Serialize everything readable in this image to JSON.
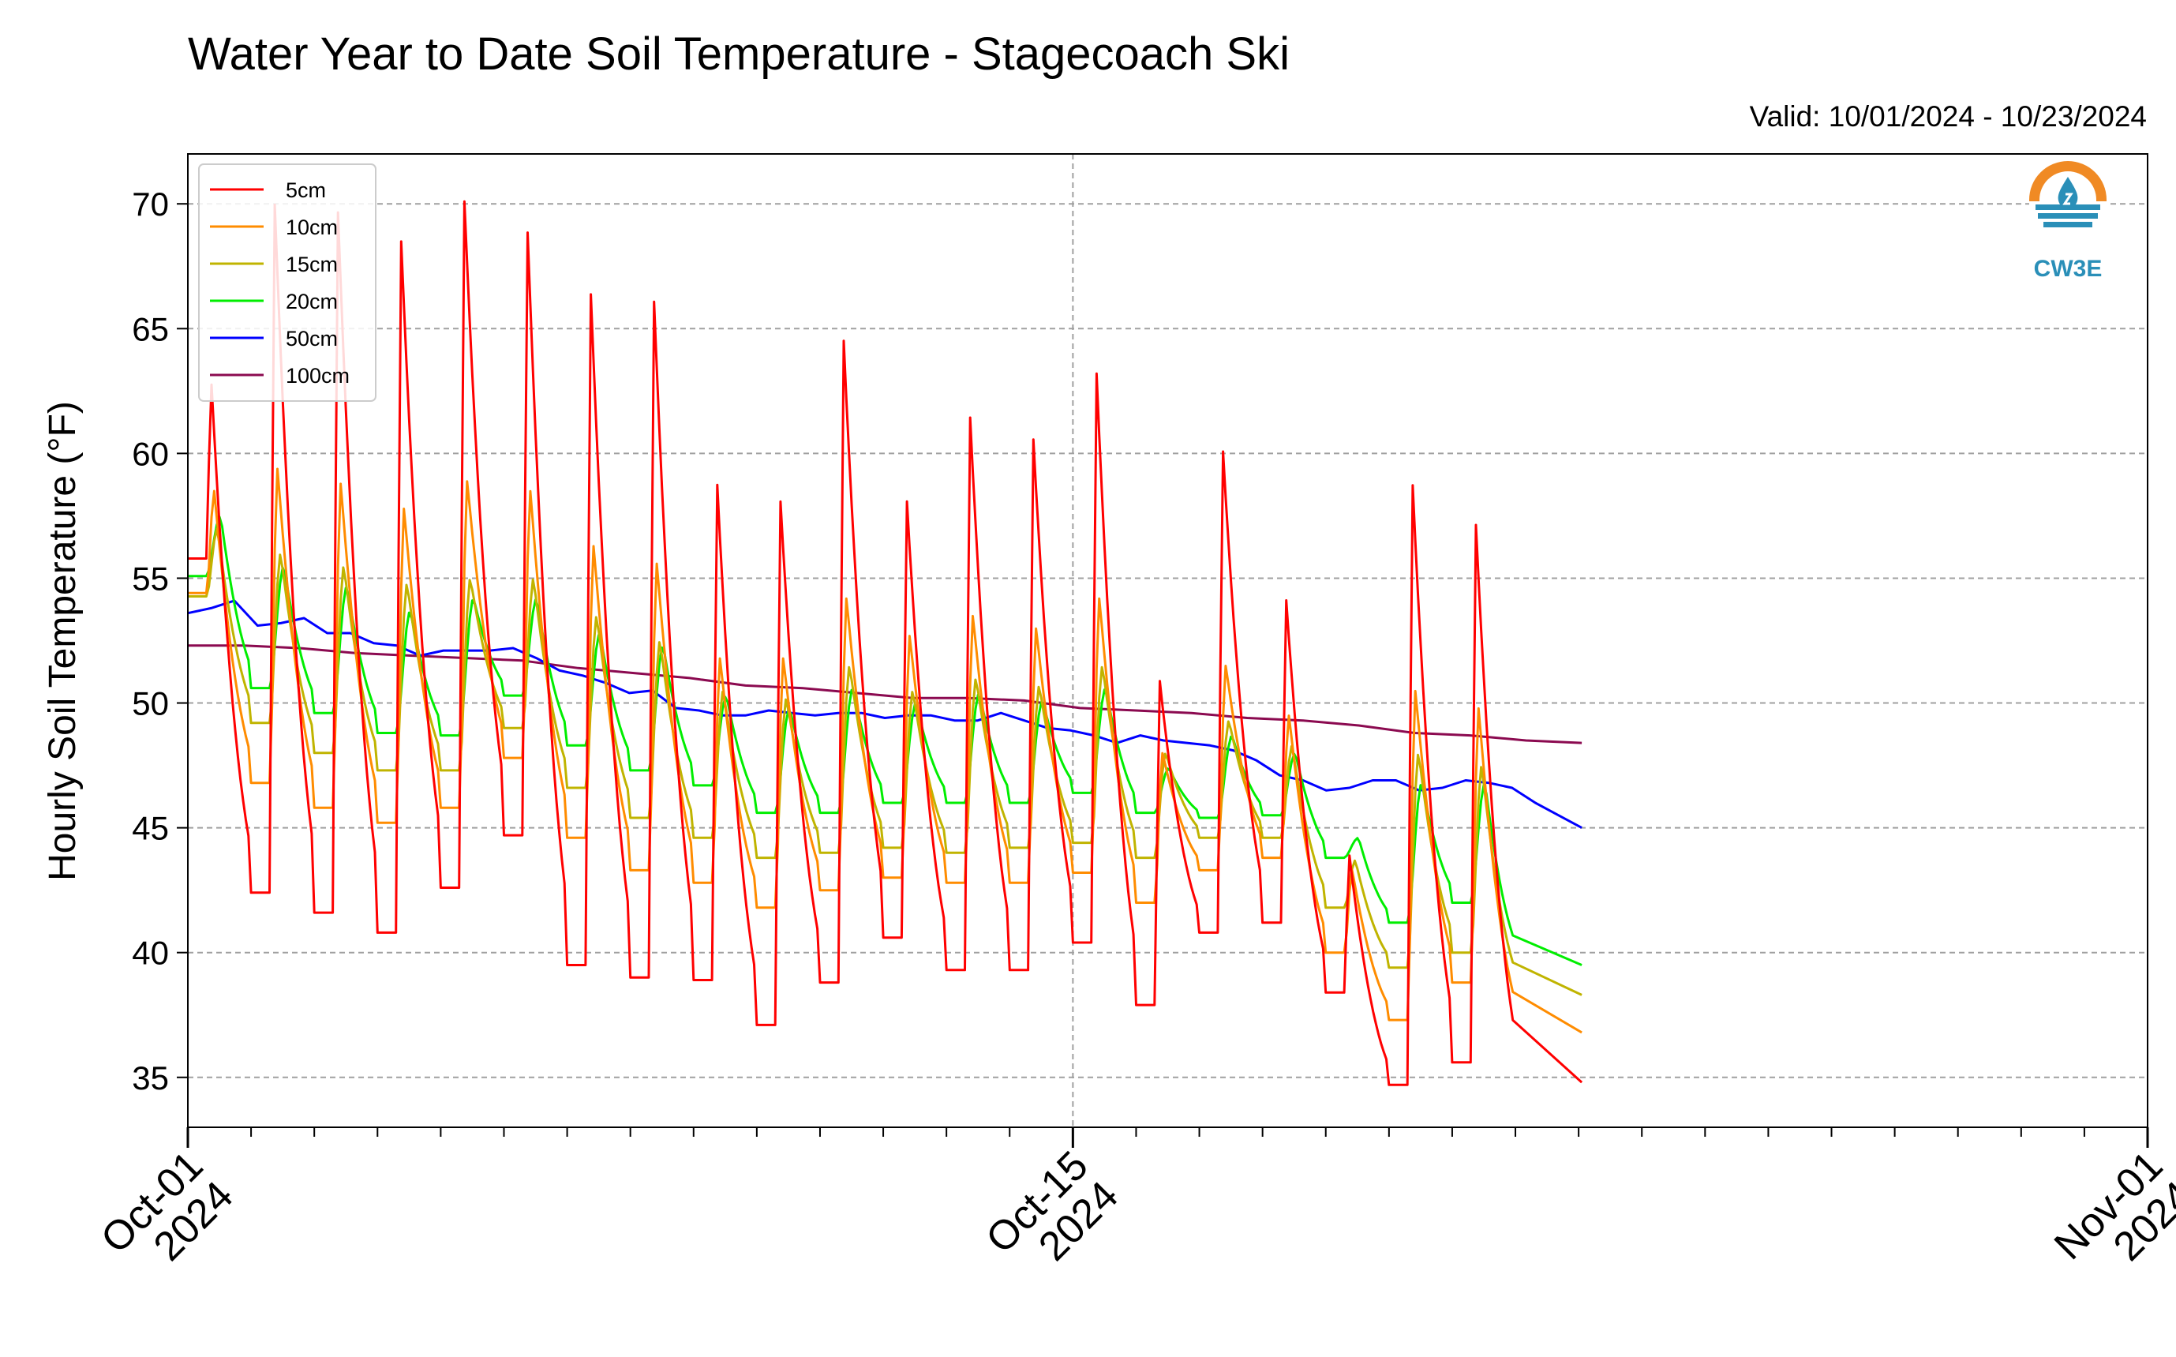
{
  "chart_data": {
    "type": "line",
    "title": "Water Year to Date Soil Temperature - Stagecoach Ski",
    "subtitle": "Valid: 10/01/2024 - 10/23/2024",
    "ylabel": "Hourly Soil Temperature (°F)",
    "xlabel": "",
    "ylim": [
      33,
      72
    ],
    "xlim": [
      "2024-10-01",
      "2024-11-01"
    ],
    "yticks": [
      35,
      40,
      45,
      50,
      55,
      60,
      65,
      70
    ],
    "xticks": [
      {
        "label": "Oct-01\n2024",
        "date": "2024-10-01"
      },
      {
        "label": "Oct-15\n2024",
        "date": "2024-10-15"
      },
      {
        "label": "Nov-01\n2024",
        "date": "2024-11-01"
      }
    ],
    "grid": true,
    "legend_position": "top-left",
    "series": [
      {
        "name": "5cm",
        "color": "#ff0000",
        "max": [
          63.0,
          70.3,
          70.0,
          68.8,
          70.4,
          69.2,
          66.7,
          66.4,
          59.0,
          58.3,
          64.8,
          58.3,
          61.7,
          60.8,
          63.5,
          51.0,
          60.3,
          54.3,
          44.0,
          59.0,
          57.4
        ],
        "min": [
          null,
          42.4,
          41.6,
          40.8,
          42.6,
          44.7,
          39.5,
          39.0,
          38.9,
          37.1,
          38.8,
          40.6,
          39.3,
          39.3,
          40.4,
          37.9,
          40.8,
          41.2,
          38.4,
          34.7,
          35.6
        ],
        "final": 34.8
      },
      {
        "name": "10cm",
        "color": "#ff8c00",
        "max": [
          58.5,
          59.4,
          58.8,
          57.8,
          58.9,
          58.5,
          56.3,
          55.6,
          51.8,
          51.8,
          54.2,
          52.7,
          53.5,
          53.0,
          54.2,
          48.0,
          51.5,
          49.5,
          43.3,
          50.5,
          49.8
        ],
        "min": [
          null,
          46.8,
          45.8,
          45.2,
          45.8,
          47.8,
          44.6,
          43.3,
          42.8,
          41.8,
          42.5,
          43.0,
          42.8,
          42.8,
          43.2,
          42.0,
          43.3,
          43.8,
          40.0,
          37.3,
          38.8
        ],
        "final": 36.8
      },
      {
        "name": "15cm",
        "color": "#c0b400",
        "max": [
          57.0,
          56.0,
          55.5,
          54.8,
          55.0,
          55.0,
          53.5,
          52.5,
          50.5,
          50.2,
          51.5,
          50.5,
          51.0,
          50.7,
          51.5,
          48.0,
          49.3,
          48.3,
          43.7,
          48.0,
          47.5
        ],
        "min": [
          null,
          49.2,
          48.0,
          47.3,
          47.3,
          49.0,
          46.6,
          45.4,
          44.6,
          43.8,
          44.0,
          44.2,
          44.0,
          44.2,
          44.4,
          43.8,
          44.6,
          44.6,
          41.8,
          39.4,
          40.0
        ],
        "final": 38.3
      },
      {
        "name": "20cm",
        "color": "#00ee00",
        "max": [
          57.5,
          55.5,
          54.7,
          53.7,
          54.2,
          54.2,
          52.8,
          52.3,
          50.3,
          49.8,
          50.6,
          50.0,
          50.4,
          50.1,
          50.6,
          47.4,
          48.7,
          48.0,
          44.6,
          46.8,
          46.8
        ],
        "min": [
          null,
          50.6,
          49.6,
          48.8,
          48.7,
          50.3,
          48.3,
          47.3,
          46.7,
          45.6,
          45.6,
          46.0,
          46.0,
          46.0,
          46.4,
          45.6,
          45.4,
          45.5,
          43.8,
          41.2,
          42.0
        ],
        "final": 39.5
      },
      {
        "name": "50cm",
        "color": "#0000ff",
        "points": [
          53.6,
          53.8,
          54.1,
          53.1,
          53.2,
          53.4,
          52.8,
          52.8,
          52.4,
          52.3,
          51.9,
          52.1,
          52.1,
          52.1,
          52.2,
          51.8,
          51.3,
          51.1,
          50.8,
          50.4,
          50.5,
          49.8,
          49.7,
          49.5,
          49.5,
          49.7,
          49.6,
          49.5,
          49.6,
          49.6,
          49.4,
          49.5,
          49.5,
          49.3,
          49.3,
          49.6,
          49.3,
          49.0,
          48.9,
          48.7,
          48.4,
          48.7,
          48.5,
          48.4,
          48.3,
          48.1,
          47.7,
          47.1,
          46.9,
          46.5,
          46.6,
          46.9,
          46.9,
          46.5,
          46.6,
          46.9,
          46.8,
          46.6,
          46.0,
          45.5,
          45.0
        ],
        "final": 45.0
      },
      {
        "name": "100cm",
        "color": "#8b0a50",
        "points": [
          52.3,
          52.3,
          52.2,
          52.0,
          51.9,
          51.8,
          51.7,
          51.4,
          51.2,
          51.0,
          50.7,
          50.6,
          50.4,
          50.2,
          50.2,
          50.1,
          49.8,
          49.7,
          49.6,
          49.4,
          49.3,
          49.1,
          48.8,
          48.7,
          48.5,
          48.4
        ],
        "final": 48.4
      }
    ]
  },
  "logo": {
    "text": "CW3E"
  }
}
